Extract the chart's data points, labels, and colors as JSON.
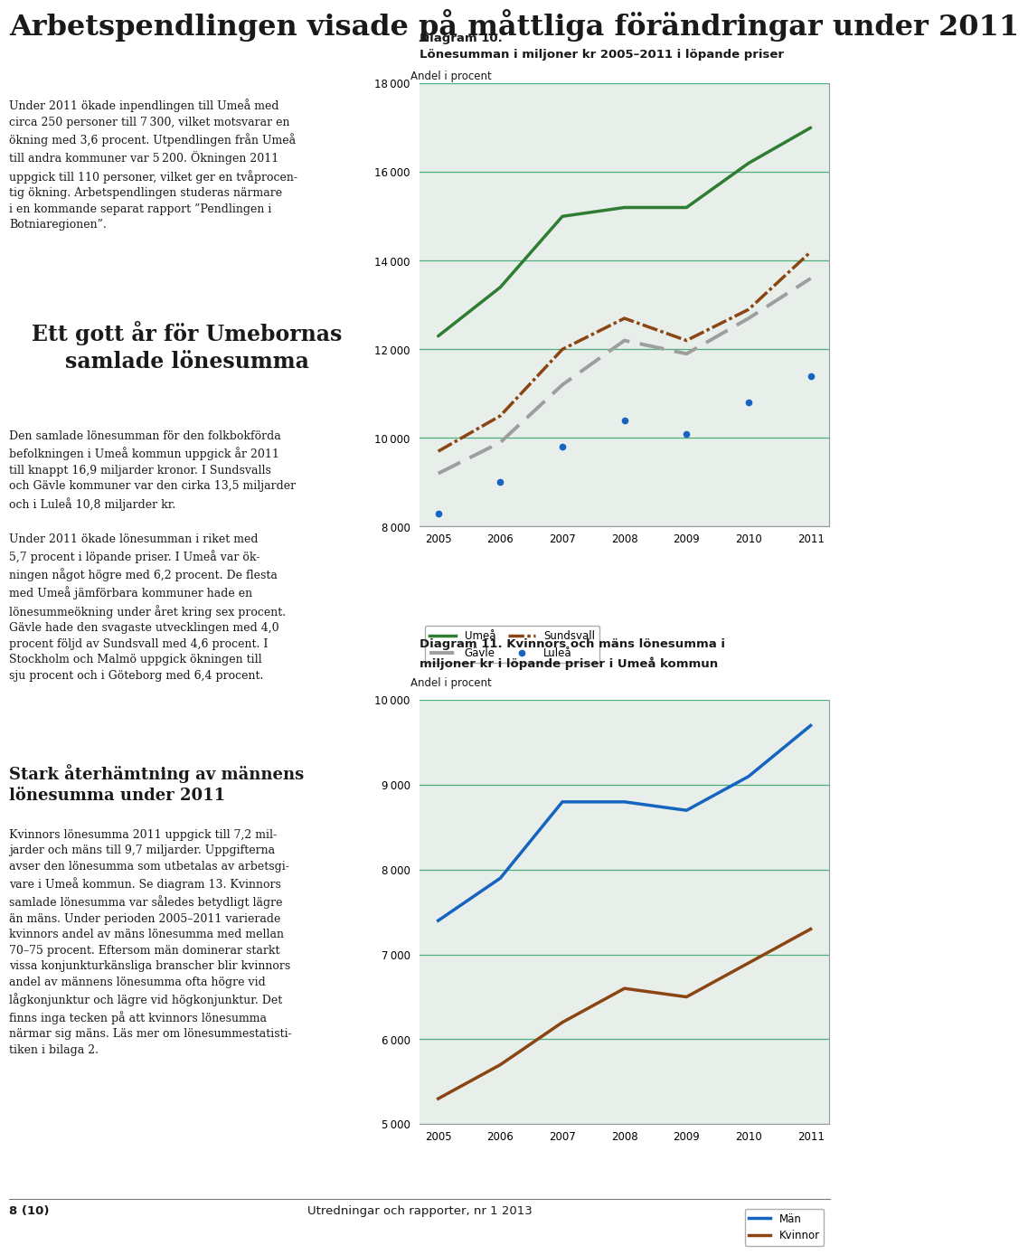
{
  "page_title": "Arbetspendlingen visade på måttliga förändringar under 2011",
  "diagram10": {
    "title_bold": "Diagram 10.",
    "title_sub": "Lönesumman i miljoner kr 2005–2011 i löpande priser",
    "ylabel": "Andel i procent",
    "years": [
      2005,
      2006,
      2007,
      2008,
      2009,
      2010,
      2011
    ],
    "umea": [
      12300,
      13400,
      15000,
      15200,
      15200,
      16200,
      17000
    ],
    "sundsvall": [
      9700,
      10500,
      12000,
      12700,
      12200,
      12900,
      14200
    ],
    "gavle": [
      9200,
      9900,
      11200,
      12200,
      11900,
      12700,
      13600
    ],
    "lulea": [
      8300,
      9000,
      9800,
      10400,
      10100,
      10800,
      11400
    ],
    "ylim": [
      8000,
      18000
    ],
    "yticks": [
      8000,
      10000,
      12000,
      14000,
      16000,
      18000
    ],
    "colors": {
      "umea": "#2e7d32",
      "sundsvall": "#8b4513",
      "gavle": "#9e9e9e",
      "lulea": "#1565c0"
    },
    "legend": [
      "Umeå",
      "Sundsvall",
      "Gävle",
      "Luleå"
    ],
    "bg_color": "#e8eeea"
  },
  "diagram11": {
    "title_line1": "Diagram 11. Kvinnors och mäns lönesumma i",
    "title_line2": "miljoner kr i löpande priser i Umeå kommun",
    "ylabel": "Andel i procent",
    "years": [
      2005,
      2006,
      2007,
      2008,
      2009,
      2010,
      2011
    ],
    "man": [
      7400,
      7900,
      8800,
      8800,
      8700,
      9100,
      9700
    ],
    "kvinna": [
      5300,
      5700,
      6200,
      6600,
      6500,
      6900,
      7300
    ],
    "ylim": [
      5000,
      10000
    ],
    "yticks": [
      5000,
      6000,
      7000,
      8000,
      9000,
      10000
    ],
    "colors": {
      "man": "#1565c0",
      "kvinna": "#8b4513"
    },
    "legend": [
      "Män",
      "Kvinnor"
    ],
    "bg_color": "#e8eeea"
  },
  "footer_left": "8 (10)",
  "footer_right": "Utredningar och rapporter, nr 1 2013",
  "page_bg": "#ffffff",
  "text_color": "#1a1a1a",
  "grid_color": "#4caf7d",
  "border_color": "#999999"
}
